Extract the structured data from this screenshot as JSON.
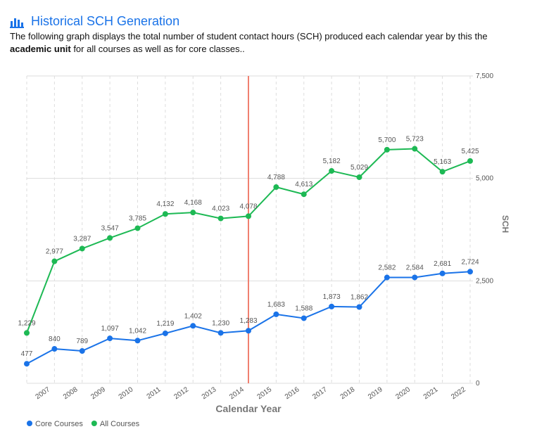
{
  "header": {
    "title": "Historical SCH Generation",
    "description": [
      "The following graph displays the total number of student contact hours (SCH) produced each calendar year by this the ",
      "academic unit",
      " for all courses as well as for core classes.."
    ]
  },
  "chart_data": {
    "type": "line",
    "x_label": "Calendar Year",
    "y_label": "SCH",
    "categories": [
      null,
      "2007",
      "2008",
      "2009",
      "2010",
      "2011",
      "2012",
      "2013",
      "2014",
      "2015",
      "2016",
      "2017",
      "2018",
      "2019",
      "2020",
      "2021",
      "2022"
    ],
    "series": [
      {
        "name": "Core Courses",
        "color": "#1a73e8",
        "values": [
          477,
          840,
          789,
          1097,
          1042,
          1219,
          1402,
          1230,
          1283,
          1683,
          1588,
          1873,
          1862,
          2582,
          2584,
          2681,
          2724
        ],
        "value_labels": [
          "477",
          "840",
          "789",
          "1,097",
          "1,042",
          "1,219",
          "1,402",
          "1,230",
          "1,283",
          "1,683",
          "1,588",
          "1,873",
          "1,862",
          "2,582",
          "2,584",
          "2,681",
          "2,724"
        ]
      },
      {
        "name": "All Courses",
        "color": "#1db954",
        "values": [
          1229,
          2977,
          3287,
          3547,
          3785,
          4132,
          4168,
          4023,
          4078,
          4788,
          4613,
          5182,
          5029,
          5700,
          5723,
          5163,
          5425
        ],
        "value_labels": [
          "1,229",
          "2,977",
          "3,287",
          "3,547",
          "3,785",
          "4,132",
          "4,168",
          "4,023",
          "4,078",
          "4,788",
          "4,613",
          "5,182",
          "5,029",
          "5,700",
          "5,723",
          "5,163",
          "5,425"
        ]
      }
    ],
    "ylim": [
      0,
      7500
    ],
    "yticks": [
      0,
      {
        "value": 2500,
        "label": "2,500"
      },
      {
        "value": 5000,
        "label": "5,000"
      },
      {
        "value": 7500,
        "label": "7,500"
      }
    ],
    "grid": true
  }
}
